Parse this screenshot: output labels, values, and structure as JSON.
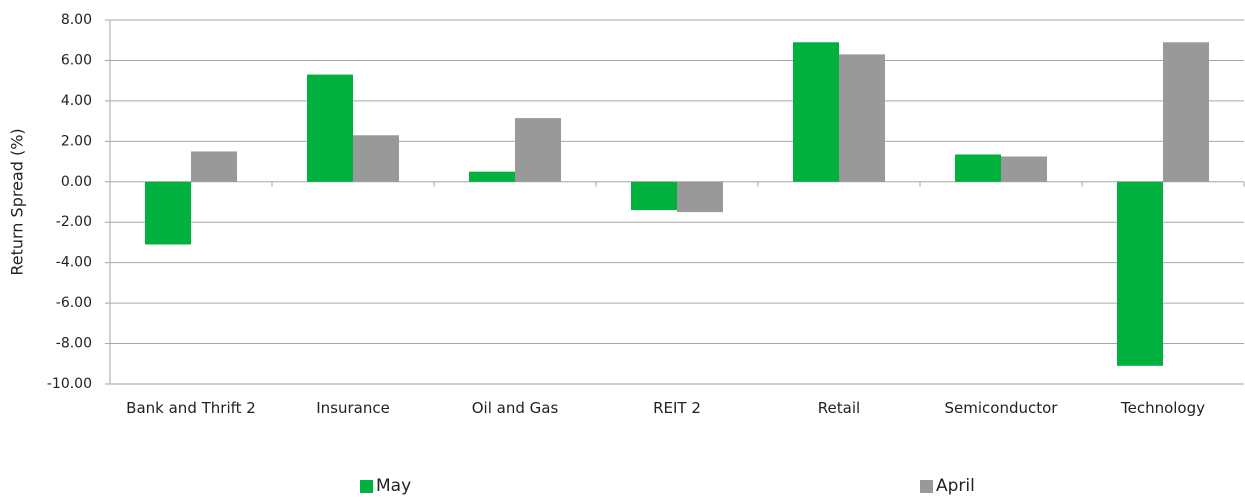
{
  "chart_data": {
    "type": "bar",
    "y_label": "Return Spread (%)",
    "categories": [
      "Bank and Thrift 2",
      "Insurance",
      "Oil and Gas",
      "REIT 2",
      "Retail",
      "Semiconductor",
      "Technology"
    ],
    "series": [
      {
        "name": "May",
        "color": "#00b140",
        "values": [
          -3.1,
          5.3,
          0.5,
          -1.4,
          6.9,
          1.35,
          -9.1
        ]
      },
      {
        "name": "April",
        "color": "#999999",
        "values": [
          1.5,
          2.3,
          3.15,
          -1.5,
          6.3,
          1.25,
          6.9
        ]
      }
    ],
    "ylim": [
      -10,
      8
    ],
    "yticks": [
      {
        "value": -10,
        "label": "-10.00"
      },
      {
        "value": -8,
        "label": "-8.00"
      },
      {
        "value": -6,
        "label": "-6.00"
      },
      {
        "value": -4,
        "label": "-4.00"
      },
      {
        "value": -2,
        "label": "-2.00"
      },
      {
        "value": 0,
        "label": "0.00"
      },
      {
        "value": 2,
        "label": "2.00"
      },
      {
        "value": 4,
        "label": "4.00"
      },
      {
        "value": 6,
        "label": "6.00"
      },
      {
        "value": 8,
        "label": "8.00"
      }
    ],
    "grid": true,
    "legend": "bottom"
  }
}
